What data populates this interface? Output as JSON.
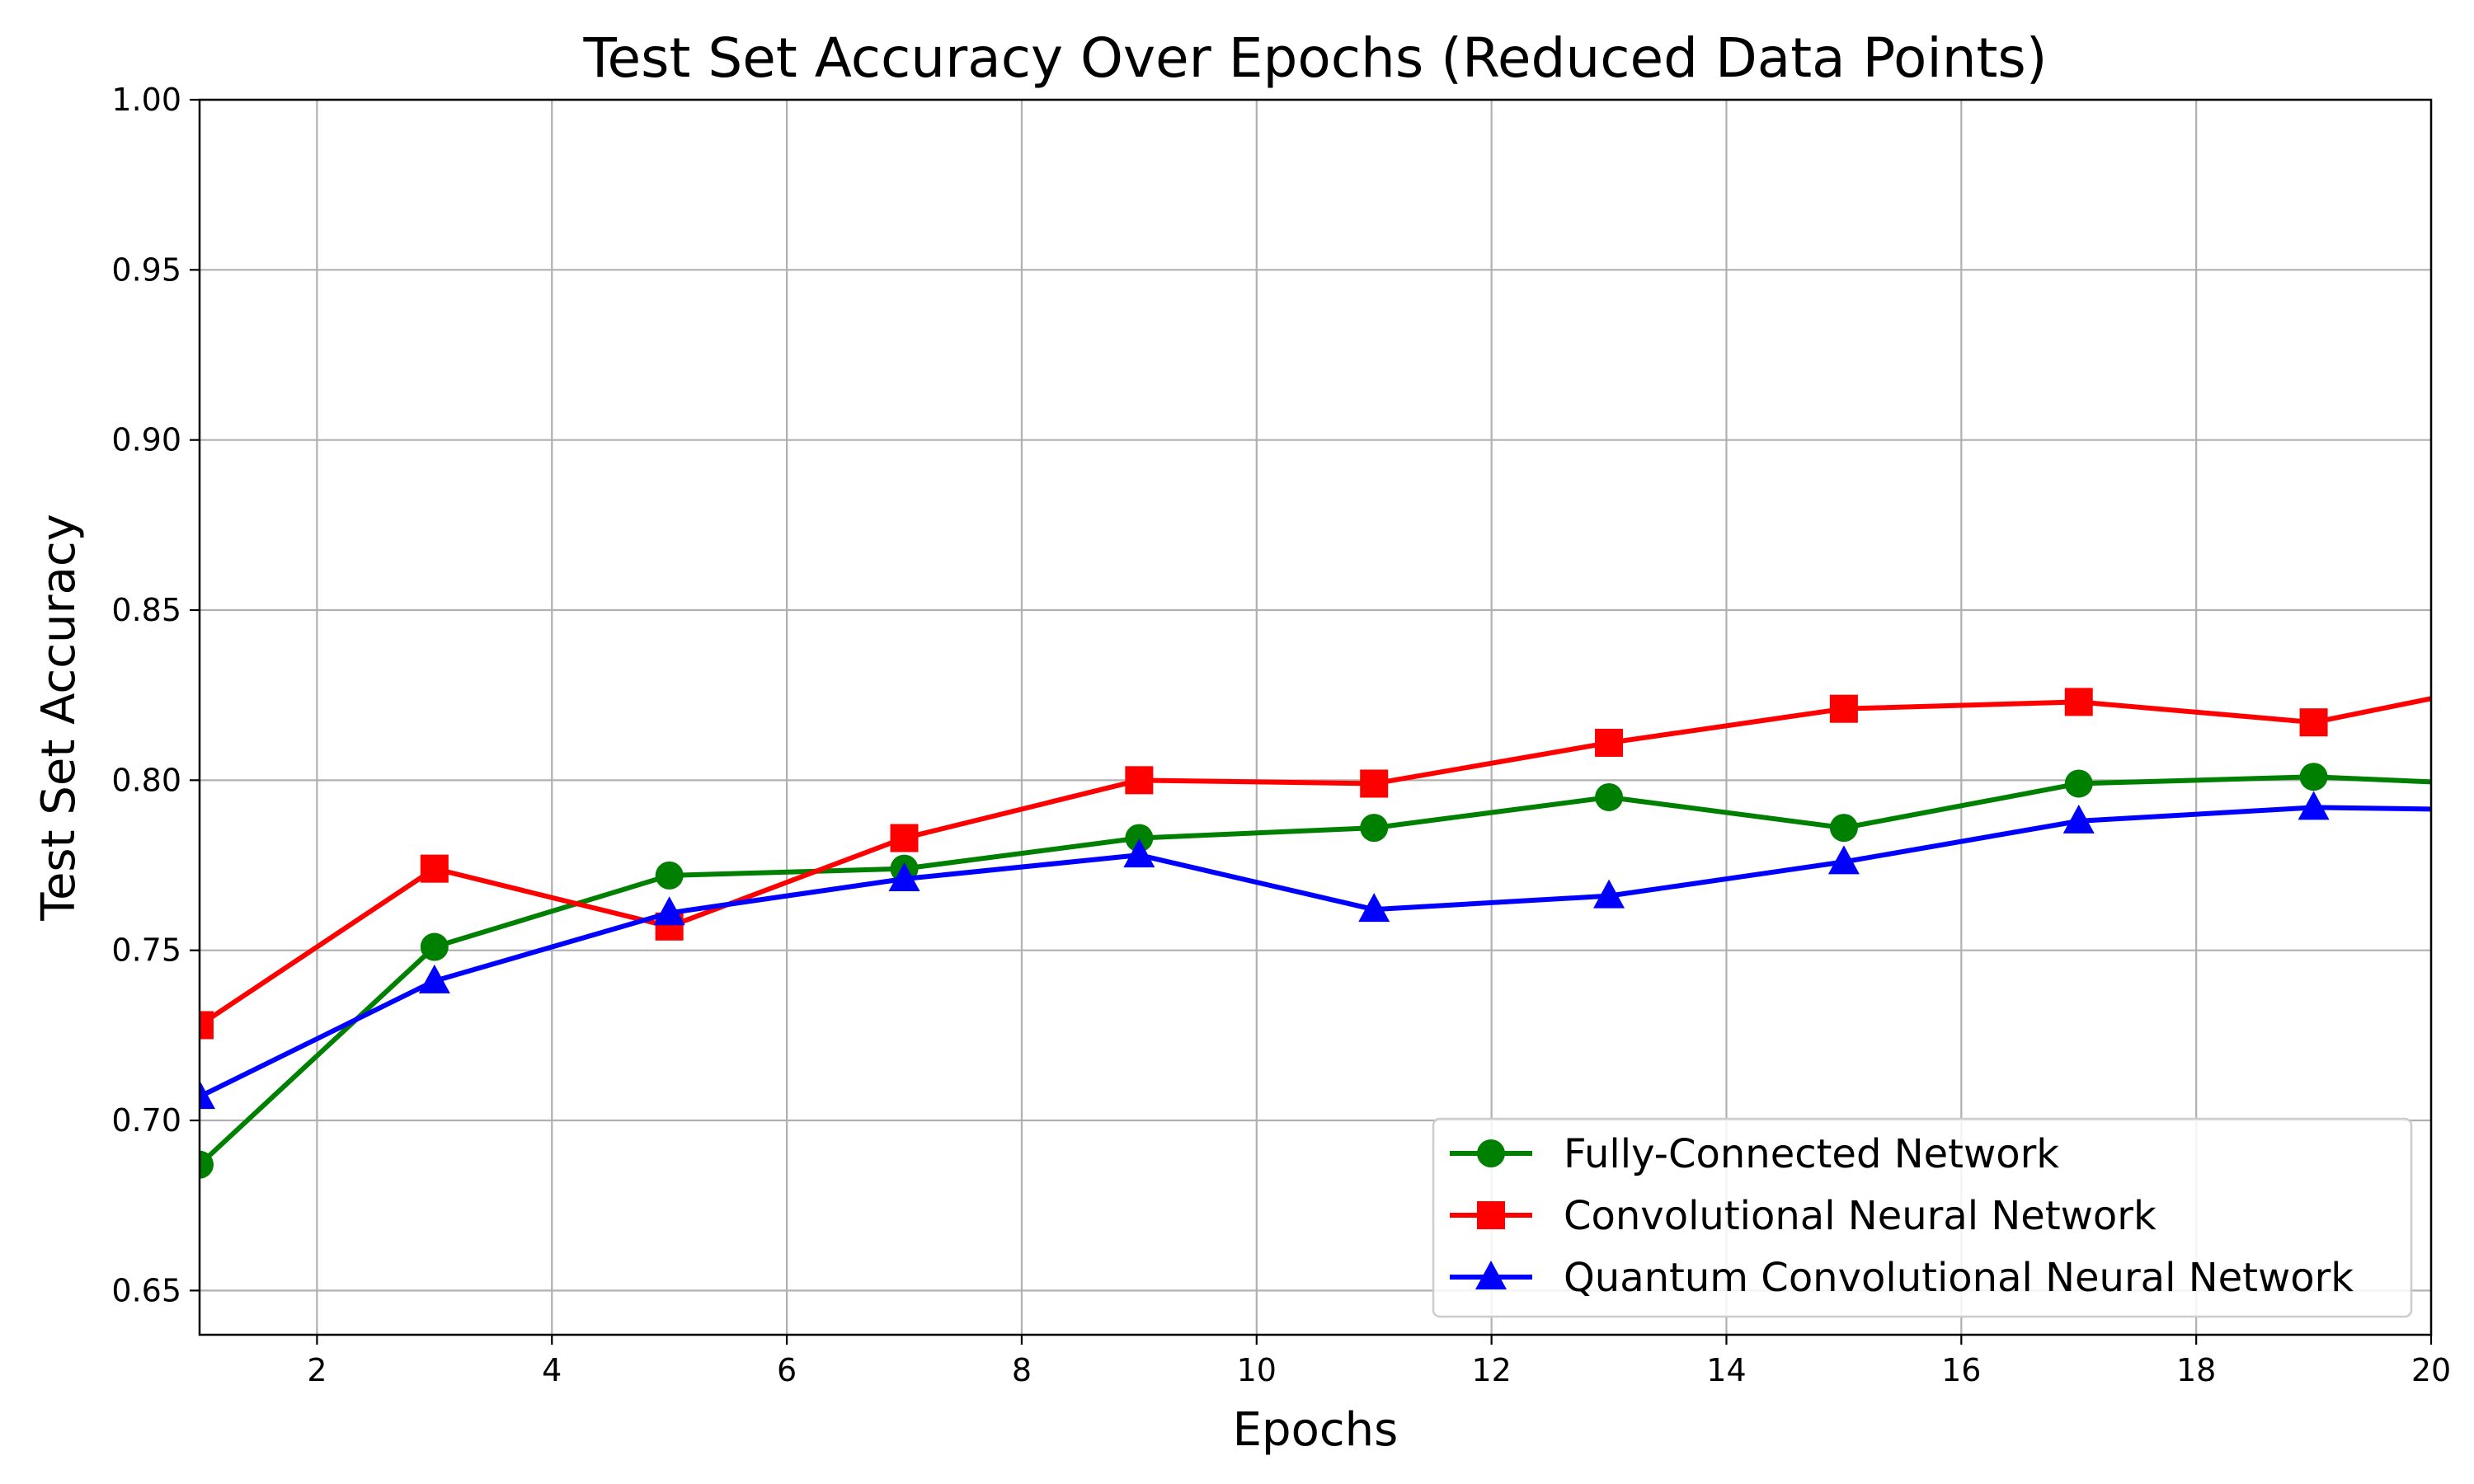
{
  "chart_data": {
    "type": "line",
    "title": "Test Set Accuracy Over Epochs (Reduced Data Points)",
    "xlabel": "Epochs",
    "ylabel": "Test Set Accuracy",
    "xlim": [
      1,
      20
    ],
    "ylim": [
      0.637,
      1.0
    ],
    "xticks": [
      2,
      4,
      6,
      8,
      10,
      12,
      14,
      16,
      18,
      20
    ],
    "yticks": [
      0.65,
      0.7,
      0.75,
      0.8,
      0.85,
      0.9,
      0.95,
      1.0
    ],
    "xtick_labels": [
      "2",
      "4",
      "6",
      "8",
      "10",
      "12",
      "14",
      "16",
      "18",
      "20"
    ],
    "ytick_labels": [
      "0.65",
      "0.70",
      "0.75",
      "0.80",
      "0.85",
      "0.90",
      "0.95",
      "1.00"
    ],
    "grid": true,
    "legend_position": "bottom-right",
    "x": [
      1,
      3,
      5,
      7,
      9,
      11,
      13,
      15,
      17,
      19,
      21
    ],
    "series": [
      {
        "name": "Fully-Connected Network",
        "color": "#008000",
        "marker": "circle",
        "values": [
          0.687,
          0.751,
          0.772,
          0.774,
          0.783,
          0.786,
          0.795,
          0.786,
          0.799,
          0.801,
          0.798
        ]
      },
      {
        "name": "Convolutional Neural Network",
        "color": "#ff0000",
        "marker": "square",
        "values": [
          0.728,
          0.774,
          0.757,
          0.783,
          0.8,
          0.799,
          0.811,
          0.821,
          0.823,
          0.817,
          0.831
        ]
      },
      {
        "name": "Quantum Convolutional Neural Network",
        "color": "#0000ff",
        "marker": "triangle",
        "values": [
          0.707,
          0.741,
          0.761,
          0.771,
          0.778,
          0.762,
          0.766,
          0.776,
          0.788,
          0.792,
          0.791
        ]
      }
    ]
  }
}
